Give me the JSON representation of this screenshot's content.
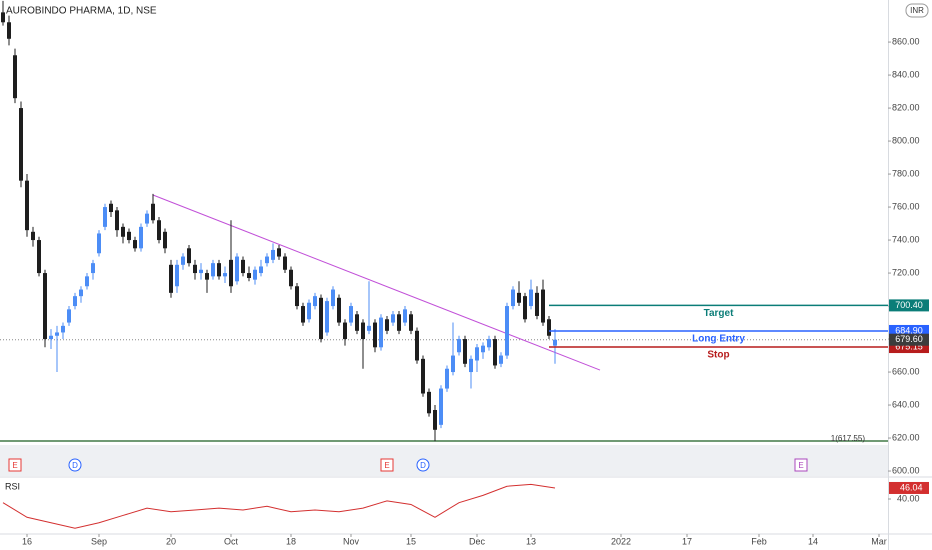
{
  "chart_data": [
    {
      "type": "candlestick",
      "title": "AUROBINDO PHARMA, 1D, NSE",
      "currency": "INR",
      "up_color": "#4c8df6",
      "down_color": "#1e1e1e",
      "x": [
        0,
        1,
        2,
        3,
        4,
        5,
        6,
        7,
        8,
        9,
        10,
        11,
        12,
        13,
        14,
        15,
        16,
        17,
        18,
        19,
        20,
        21,
        22,
        23,
        24,
        25,
        26,
        27,
        28,
        29,
        30,
        31,
        32,
        33,
        34,
        35,
        36,
        37,
        38,
        39,
        40,
        41,
        42,
        43,
        44,
        45,
        46,
        47,
        48,
        49,
        50,
        51,
        52,
        53,
        54,
        55,
        56,
        57,
        58,
        59,
        60,
        61,
        62,
        63,
        64,
        65,
        66,
        67,
        68,
        69,
        70,
        71,
        72,
        73,
        74,
        75,
        76,
        77,
        78,
        79,
        80,
        81,
        82,
        83,
        84,
        85,
        86,
        87,
        88,
        89,
        90,
        91,
        92
      ],
      "open": [
        878,
        872,
        852,
        820,
        776,
        745,
        740,
        720,
        680,
        682,
        684,
        690,
        700,
        706,
        712,
        720,
        732,
        748,
        762,
        758,
        748,
        745,
        740,
        735,
        750,
        762,
        752,
        745,
        725,
        712,
        725,
        735,
        725,
        720,
        720,
        718,
        726,
        718,
        728,
        715,
        728,
        720,
        716,
        720,
        726,
        728,
        735,
        730,
        722,
        712,
        700,
        692,
        700,
        705,
        684,
        700,
        705,
        690,
        690,
        695,
        690,
        685,
        690,
        675,
        692,
        690,
        695,
        690,
        695,
        685,
        668,
        648,
        637,
        628,
        650,
        660,
        672,
        680,
        660,
        667,
        672,
        675,
        680,
        665,
        670,
        700,
        708,
        706,
        700,
        708,
        710,
        692,
        676
      ],
      "high": [
        885,
        876,
        856,
        824,
        780,
        748,
        742,
        722,
        686,
        688,
        690,
        700,
        708,
        712,
        720,
        728,
        746,
        762,
        764,
        760,
        750,
        747,
        742,
        750,
        758,
        768,
        754,
        747,
        728,
        728,
        732,
        737,
        728,
        726,
        722,
        728,
        728,
        724,
        752,
        732,
        730,
        724,
        724,
        728,
        732,
        738,
        737,
        732,
        724,
        714,
        702,
        704,
        708,
        707,
        705,
        712,
        707,
        692,
        702,
        697,
        692,
        715,
        692,
        695,
        694,
        697,
        697,
        700,
        697,
        687,
        670,
        650,
        640,
        652,
        664,
        690,
        682,
        682,
        670,
        677,
        678,
        682,
        682,
        672,
        702,
        712,
        715,
        708,
        716,
        712,
        716,
        694,
        686
      ],
      "low": [
        870,
        858,
        823,
        772,
        742,
        736,
        718,
        675,
        674,
        660,
        680,
        688,
        698,
        702,
        710,
        716,
        730,
        746,
        754,
        742,
        738,
        738,
        733,
        733,
        748,
        750,
        738,
        732,
        705,
        708,
        722,
        724,
        716,
        716,
        708,
        716,
        716,
        714,
        708,
        713,
        718,
        715,
        713,
        718,
        724,
        726,
        728,
        720,
        710,
        698,
        688,
        690,
        698,
        678,
        682,
        698,
        688,
        676,
        688,
        683,
        662,
        683,
        672,
        673,
        683,
        688,
        683,
        688,
        683,
        665,
        645,
        633,
        618,
        626,
        648,
        658,
        670,
        663,
        650,
        660,
        668,
        673,
        662,
        663,
        668,
        698,
        700,
        690,
        698,
        692,
        688,
        680,
        665
      ],
      "close": [
        872,
        862,
        826,
        776,
        746,
        740,
        720,
        680,
        682,
        684,
        688,
        698,
        706,
        710,
        718,
        726,
        744,
        760,
        757,
        746,
        742,
        740,
        735,
        748,
        756,
        752,
        740,
        735,
        708,
        725,
        730,
        726,
        720,
        722,
        716,
        726,
        718,
        720,
        712,
        730,
        720,
        717,
        722,
        724,
        730,
        734,
        730,
        722,
        712,
        700,
        690,
        702,
        706,
        680,
        703,
        710,
        690,
        680,
        700,
        685,
        680,
        688,
        675,
        693,
        685,
        695,
        685,
        698,
        685,
        667,
        647,
        635,
        625,
        650,
        662,
        670,
        680,
        665,
        668,
        675,
        676,
        680,
        664,
        670,
        700,
        710,
        702,
        692,
        710,
        694,
        690,
        682,
        679.6
      ],
      "xlim": [
        -0.5,
        147.5
      ],
      "xticks": [
        {
          "value": 4,
          "label": "16"
        },
        {
          "value": 16,
          "label": "Sep"
        },
        {
          "value": 28,
          "label": "20"
        },
        {
          "value": 38,
          "label": "Oct"
        },
        {
          "value": 48,
          "label": "18"
        },
        {
          "value": 58,
          "label": "Nov"
        },
        {
          "value": 68,
          "label": "15"
        },
        {
          "value": 79,
          "label": "Dec"
        },
        {
          "value": 88,
          "label": "13"
        },
        {
          "value": 103,
          "label": "2022"
        },
        {
          "value": 114,
          "label": "17"
        },
        {
          "value": 126,
          "label": "Feb"
        },
        {
          "value": 135,
          "label": "14"
        },
        {
          "value": 146,
          "label": "Mar"
        }
      ],
      "ylim": [
        597.6,
        885.5
      ],
      "yticks": [
        {
          "value": 860,
          "label": "860.00"
        },
        {
          "value": 840,
          "label": "840.00"
        },
        {
          "value": 820,
          "label": "820.00"
        },
        {
          "value": 800,
          "label": "800.00"
        },
        {
          "value": 780,
          "label": "780.00"
        },
        {
          "value": 760,
          "label": "760.00"
        },
        {
          "value": 740,
          "label": "740.00"
        },
        {
          "value": 720,
          "label": "720.00"
        },
        {
          "value": 700,
          "label": "700.00"
        },
        {
          "value": 680,
          "label": "680.00"
        },
        {
          "value": 660,
          "label": "660.00"
        },
        {
          "value": 640,
          "label": "640.00"
        },
        {
          "value": 620,
          "label": "620.00"
        },
        {
          "value": 600,
          "label": "600.00"
        }
      ],
      "last_price": {
        "value": 679.6,
        "label": "679.60",
        "color": "#3c3c3c"
      },
      "levels": [
        {
          "name": "Target",
          "value": 700.4,
          "label": "700.40",
          "color": "#0b7d78"
        },
        {
          "name": "Long Entry",
          "value": 684.9,
          "label": "684.90",
          "color": "#2962ff"
        },
        {
          "name": "Stop",
          "value": 675.15,
          "label": "675.15",
          "color": "#b71c1c"
        }
      ],
      "levels_start": 91,
      "trendline": {
        "x": [
          25,
          99.5
        ],
        "y": [
          767.3,
          661.2
        ],
        "color": "#c150d8"
      },
      "annotation": {
        "x": 143,
        "value": 617.55,
        "label": "1(617.55)"
      },
      "events": [
        {
          "label": "E",
          "x": 2,
          "color": "#e53935",
          "shape": "square"
        },
        {
          "label": "D",
          "x": 12,
          "color": "#2962ff",
          "shape": "circle"
        },
        {
          "label": "E",
          "x": 64,
          "color": "#e53935",
          "shape": "square"
        },
        {
          "label": "D",
          "x": 70,
          "color": "#2962ff",
          "shape": "circle"
        },
        {
          "label": "E",
          "x": 133,
          "color": "#ab47bc",
          "shape": "square"
        }
      ]
    },
    {
      "type": "line",
      "title": "RSI",
      "color": "#d32f2f",
      "x": [
        0,
        4,
        8,
        12,
        16,
        20,
        24,
        28,
        32,
        36,
        40,
        44,
        48,
        52,
        56,
        60,
        64,
        68,
        72,
        76,
        80,
        84,
        88,
        92
      ],
      "values": [
        38,
        30,
        27,
        24,
        27,
        31,
        35,
        33,
        34,
        35,
        34,
        36,
        33,
        34,
        33,
        35,
        39,
        37,
        30,
        38,
        42,
        47,
        48,
        46.04
      ],
      "xlim": [
        -0.5,
        147.5
      ],
      "ylim": [
        20.3,
        51.5
      ],
      "yticks": [
        {
          "value": 40,
          "label": "40.00"
        }
      ]
    }
  ]
}
